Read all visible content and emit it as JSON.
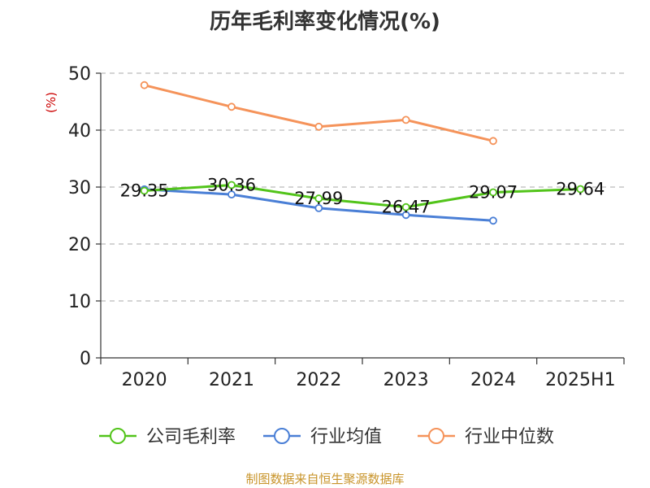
{
  "chart_title": "历年毛利率变化情况(%)",
  "footer_source": "制图数据来自恒生聚源数据库",
  "chart_data": {
    "type": "line",
    "title": "历年毛利率变化情况(%)",
    "ylabel": "(%)",
    "xlabel": "",
    "categories": [
      "2020",
      "2021",
      "2022",
      "2023",
      "2024",
      "2025H1"
    ],
    "ylim": [
      0,
      50
    ],
    "yticks": [
      0,
      10,
      20,
      30,
      40,
      50
    ],
    "grid": true,
    "legend_position": "bottom",
    "series": [
      {
        "name": "公司毛利率",
        "color": "#52c41a",
        "values": [
          29.35,
          30.36,
          27.99,
          26.47,
          29.07,
          29.64
        ],
        "labels": [
          "29.35",
          "30.36",
          "27.99",
          "26.47",
          "29.07",
          "29.64"
        ]
      },
      {
        "name": "行业均值",
        "color": "#4a7fd6",
        "values": [
          29.6,
          28.7,
          26.3,
          25.1,
          24.1,
          null
        ]
      },
      {
        "name": "行业中位数",
        "color": "#f5935a",
        "values": [
          47.9,
          44.1,
          40.6,
          41.8,
          38.1,
          null
        ]
      }
    ]
  }
}
